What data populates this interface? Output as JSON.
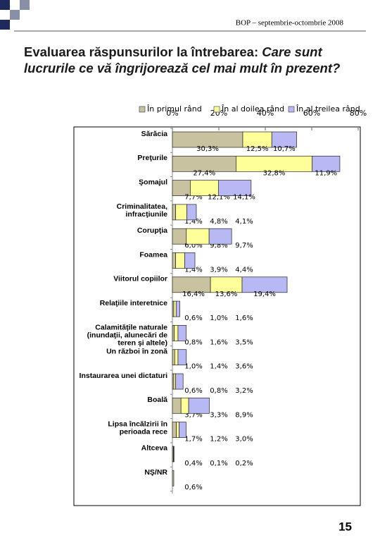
{
  "slide": {
    "header": "BOP – septembrie-octombrie 2008",
    "title": "Evaluarea răspunsurilor la întrebarea:",
    "question": "Care sunt lucrurile ce vă îngrijorează cel mai mult în prezent?",
    "page_number": "15"
  },
  "chart_data": {
    "type": "stacked-barh",
    "categories": [
      "Sărăcia",
      "Preţurile",
      "Şomajul",
      "Criminalitatea,\ninfracţiunile",
      "Corupţia",
      "Foamea",
      "Viitorul copiilor",
      "Relaţiile interetnice",
      "Calamităţile naturale\n(inundaţii, alunecări de\nteren şi altele)",
      "Un război în zonă",
      "Instaurarea unei dictaturi",
      "Boală",
      "Lipsa încălzirii în\nperioada rece",
      "Altceva",
      "NŞ/NR"
    ],
    "series": [
      {
        "name": "În primul rând",
        "color": "#c9c2a0",
        "values": [
          30.3,
          27.4,
          7.7,
          1.4,
          6.0,
          1.4,
          16.4,
          0.6,
          0.8,
          1.0,
          0.6,
          3.7,
          1.7,
          0.4,
          0.6
        ],
        "value_labels": [
          "30,3%",
          "27,4%",
          "7,7%",
          "1,4%",
          "6,0%",
          "1,4%",
          "16,4%",
          "0,6%",
          "0,8%",
          "1,0%",
          "0,6%",
          "3,7%",
          "1,7%",
          "0,4%",
          "0,6%"
        ]
      },
      {
        "name": "În al doilea rând",
        "color": "#ffff99",
        "values": [
          12.5,
          32.8,
          12.1,
          4.8,
          9.8,
          3.9,
          13.6,
          1.0,
          1.6,
          1.4,
          0.8,
          3.3,
          1.2,
          0.1,
          null
        ],
        "value_labels": [
          "12,5%",
          "32,8%",
          "12,1%",
          "4,8%",
          "9,8%",
          "3,9%",
          "13,6%",
          "1,0%",
          "1,6%",
          "1,4%",
          "0,8%",
          "3,3%",
          "1,2%",
          "0,1%",
          null
        ]
      },
      {
        "name": "În al treilea rând",
        "color": "#b8b8f5",
        "values": [
          10.7,
          11.9,
          14.1,
          4.1,
          9.7,
          4.4,
          19.4,
          1.6,
          3.5,
          3.6,
          3.2,
          8.9,
          3.0,
          0.2,
          null
        ],
        "value_labels": [
          "10,7%",
          "11,9%",
          "14,1%",
          "4,1%",
          "9,7%",
          "4,4%",
          "19,4%",
          "1,6%",
          "3,5%",
          "3,6%",
          "3,2%",
          "8,9%",
          "3,0%",
          "0,2%",
          null
        ]
      }
    ],
    "xlim": [
      0,
      80
    ],
    "xticks": [
      {
        "value": 0,
        "label": "0%"
      },
      {
        "value": 20,
        "label": "20%"
      },
      {
        "value": 40,
        "label": "40%"
      },
      {
        "value": 60,
        "label": "60%"
      },
      {
        "value": 80,
        "label": "80%"
      }
    ]
  }
}
